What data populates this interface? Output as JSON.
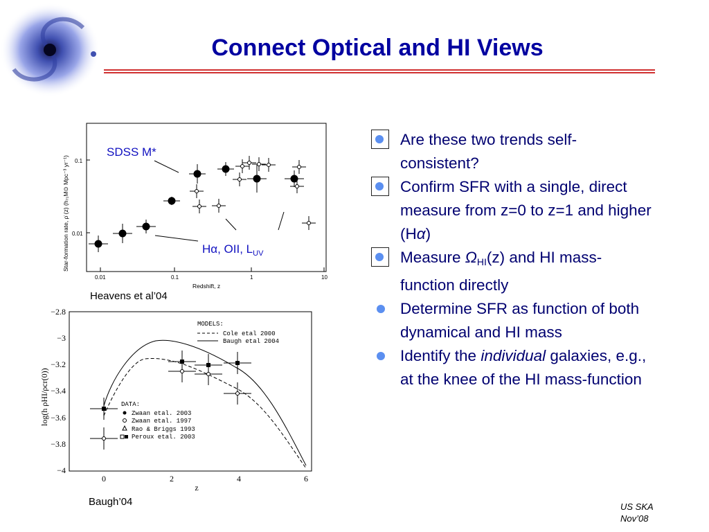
{
  "slide": {
    "title": "Connect Optical and HI Views",
    "footer_line1": "US SKA",
    "footer_line2": "Nov’08"
  },
  "captions": {
    "plot1_credit": "Heavens et al’04",
    "plot2_credit": "Baugh’04"
  },
  "plot1": {
    "ylabel": "Star-formation rate, ρ̇ (z)  (h₇₁M⊙ Mpc⁻³ yr⁻¹)",
    "xlabel": "Redshift, z",
    "xticks": [
      "0.01",
      "0.1",
      "1",
      "10"
    ],
    "yticks": [
      "0.1",
      "0.01"
    ],
    "annotation_sdss": "SDSS M*",
    "annotation_ha_prefix": "Hα, OII, L",
    "annotation_ha_sub": "UV"
  },
  "plot2": {
    "ylabel": "log(h ρHI/ρcr(0))",
    "xlabel": "z",
    "xticks": [
      "0",
      "2",
      "4",
      "6"
    ],
    "yticks": [
      "−2.8",
      "−3",
      "−3.2",
      "−3.4",
      "−3.6",
      "−3.8",
      "−4"
    ],
    "models_title": "MODELS:",
    "model1": "Cole etal 2000",
    "model2": "Baugh etal 2004",
    "data_title": "DATA:",
    "data1": "Zwaan etal. 2003",
    "data2": "Zwaan etal. 1997",
    "data3": "Rao & Briggs 1993",
    "data4": "Peroux etal. 2003"
  },
  "bullets": [
    {
      "text": "Are these two trends self-consistent?",
      "boxed": true
    },
    {
      "text_html": "Confirm SFR with a single, direct measure from z=0 to z=1 and higher (H<i>α</i>)",
      "boxed": true
    },
    {
      "boxed": true
    },
    {
      "text": "Determine SFR as function of both dynamical and HI mass",
      "boxed": false
    },
    {
      "boxed": false
    }
  ],
  "bullet3": {
    "pre": "Measure ",
    "omega": "Ω",
    "sub": "HI",
    "post": "(z) and HI mass-function directly"
  },
  "bullet5": {
    "pre": "Identify the ",
    "em": "individual",
    "post": " galaxies, e.g., at the knee of the HI mass-function"
  },
  "colors": {
    "title": "#0000a0",
    "bullet_text": "#000070",
    "bullet_dot": "#5b8ff0",
    "rule": "#d03030",
    "annotation": "#1010c0"
  }
}
